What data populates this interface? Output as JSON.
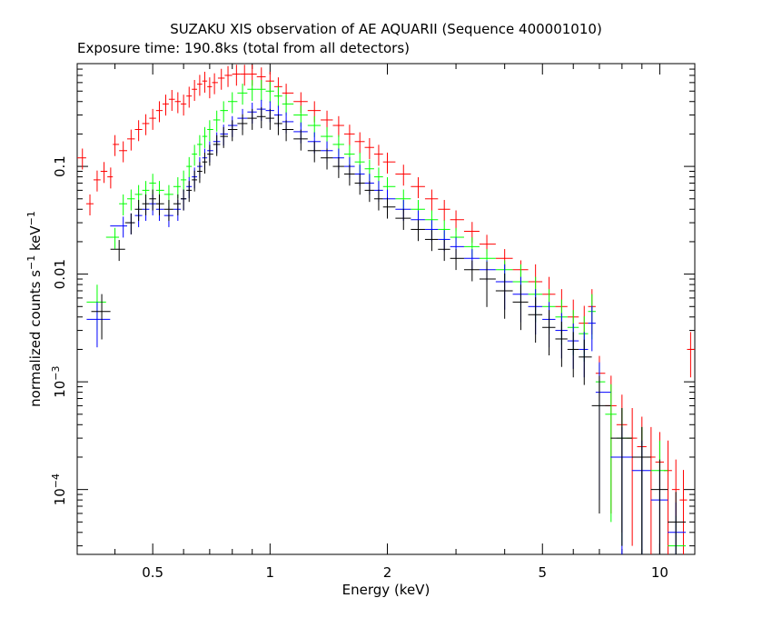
{
  "chart_data": {
    "type": "scatter",
    "title": "SUZAKU XIS observation of AE AQUARII (Sequence 400001010)",
    "subtitle": "Exposure time: 190.8ks (total from all detectors)",
    "xlabel": "Energy (keV)",
    "ylabel_main": "normalized counts s",
    "ylabel_exp1": "−1",
    "ylabel_mid": " keV",
    "ylabel_exp2": "−1",
    "x_scale": "log",
    "y_scale": "log",
    "xlim": [
      0.32,
      12.3
    ],
    "ylim": [
      2.5e-05,
      0.9
    ],
    "grid": false,
    "x_ticks": [
      {
        "value": 0.5,
        "label": "0.5"
      },
      {
        "value": 1,
        "label": "1"
      },
      {
        "value": 2,
        "label": "2"
      },
      {
        "value": 5,
        "label": "5"
      },
      {
        "value": 10,
        "label": "10"
      }
    ],
    "y_ticks": [
      {
        "value": 0.1,
        "label": "0.1",
        "exp": ""
      },
      {
        "value": 0.01,
        "label": "0.01",
        "exp": ""
      },
      {
        "value": 0.001,
        "label": "10",
        "exp": "−3"
      },
      {
        "value": 0.0001,
        "label": "10",
        "exp": "−4"
      }
    ],
    "series": [
      {
        "color": "#ff0000",
        "points": [
          [
            0.33,
            0.12
          ],
          [
            0.345,
            0.045
          ],
          [
            0.36,
            0.075
          ],
          [
            0.375,
            0.09
          ],
          [
            0.39,
            0.08
          ],
          [
            0.4,
            0.16
          ],
          [
            0.42,
            0.14
          ],
          [
            0.44,
            0.18
          ],
          [
            0.46,
            0.22
          ],
          [
            0.48,
            0.25
          ],
          [
            0.5,
            0.28
          ],
          [
            0.52,
            0.33
          ],
          [
            0.54,
            0.38
          ],
          [
            0.56,
            0.42
          ],
          [
            0.58,
            0.4
          ],
          [
            0.6,
            0.38
          ],
          [
            0.62,
            0.45
          ],
          [
            0.64,
            0.52
          ],
          [
            0.66,
            0.58
          ],
          [
            0.68,
            0.62
          ],
          [
            0.7,
            0.55
          ],
          [
            0.72,
            0.6
          ],
          [
            0.75,
            0.66
          ],
          [
            0.78,
            0.7
          ],
          [
            0.82,
            0.72
          ],
          [
            0.86,
            0.72
          ],
          [
            0.9,
            0.72
          ],
          [
            0.95,
            0.68
          ],
          [
            1.0,
            0.62
          ],
          [
            1.05,
            0.55
          ],
          [
            1.1,
            0.48
          ],
          [
            1.2,
            0.4
          ],
          [
            1.3,
            0.33
          ],
          [
            1.4,
            0.27
          ],
          [
            1.5,
            0.24
          ],
          [
            1.6,
            0.2
          ],
          [
            1.7,
            0.17
          ],
          [
            1.8,
            0.15
          ],
          [
            1.9,
            0.13
          ],
          [
            2.0,
            0.11
          ],
          [
            2.2,
            0.085
          ],
          [
            2.4,
            0.065
          ],
          [
            2.6,
            0.05
          ],
          [
            2.8,
            0.04
          ],
          [
            3.0,
            0.032
          ],
          [
            3.3,
            0.025
          ],
          [
            3.6,
            0.019
          ],
          [
            4.0,
            0.014
          ],
          [
            4.4,
            0.011
          ],
          [
            4.8,
            0.0085
          ],
          [
            5.2,
            0.0065
          ],
          [
            5.6,
            0.005
          ],
          [
            6.0,
            0.004
          ],
          [
            6.4,
            0.0035
          ],
          [
            6.7,
            0.005
          ],
          [
            7.0,
            0.0012
          ],
          [
            7.5,
            0.0006
          ],
          [
            8.0,
            0.0004
          ],
          [
            8.5,
            0.0003
          ],
          [
            9.0,
            0.00025
          ],
          [
            9.5,
            0.0002
          ],
          [
            10.0,
            0.00018
          ],
          [
            10.5,
            0.00015
          ],
          [
            11.0,
            0.0001
          ],
          [
            11.5,
            8e-05
          ],
          [
            12.0,
            0.002
          ]
        ]
      },
      {
        "color": "#00ff00",
        "points": [
          [
            0.36,
            0.0055
          ],
          [
            0.4,
            0.022
          ],
          [
            0.42,
            0.045
          ],
          [
            0.44,
            0.05
          ],
          [
            0.46,
            0.055
          ],
          [
            0.48,
            0.06
          ],
          [
            0.5,
            0.07
          ],
          [
            0.52,
            0.06
          ],
          [
            0.55,
            0.055
          ],
          [
            0.58,
            0.065
          ],
          [
            0.6,
            0.075
          ],
          [
            0.62,
            0.1
          ],
          [
            0.64,
            0.13
          ],
          [
            0.66,
            0.16
          ],
          [
            0.68,
            0.19
          ],
          [
            0.7,
            0.22
          ],
          [
            0.73,
            0.27
          ],
          [
            0.76,
            0.33
          ],
          [
            0.8,
            0.4
          ],
          [
            0.85,
            0.48
          ],
          [
            0.9,
            0.52
          ],
          [
            0.95,
            0.52
          ],
          [
            1.0,
            0.5
          ],
          [
            1.05,
            0.45
          ],
          [
            1.1,
            0.38
          ],
          [
            1.2,
            0.3
          ],
          [
            1.3,
            0.24
          ],
          [
            1.4,
            0.19
          ],
          [
            1.5,
            0.16
          ],
          [
            1.6,
            0.13
          ],
          [
            1.7,
            0.11
          ],
          [
            1.8,
            0.095
          ],
          [
            1.9,
            0.08
          ],
          [
            2.0,
            0.065
          ],
          [
            2.2,
            0.05
          ],
          [
            2.4,
            0.04
          ],
          [
            2.6,
            0.032
          ],
          [
            2.8,
            0.026
          ],
          [
            3.0,
            0.022
          ],
          [
            3.3,
            0.018
          ],
          [
            3.6,
            0.014
          ],
          [
            4.0,
            0.011
          ],
          [
            4.4,
            0.0085
          ],
          [
            4.8,
            0.0065
          ],
          [
            5.2,
            0.005
          ],
          [
            5.6,
            0.004
          ],
          [
            6.0,
            0.0032
          ],
          [
            6.4,
            0.0028
          ],
          [
            6.7,
            0.0045
          ],
          [
            7.0,
            0.001
          ],
          [
            7.5,
            0.0005
          ],
          [
            8.0,
            0.0003
          ],
          [
            9.0,
            0.0002
          ],
          [
            10.0,
            0.00015
          ],
          [
            11.0,
            3e-05
          ]
        ]
      },
      {
        "color": "#0000ff",
        "points": [
          [
            0.36,
            0.0038
          ],
          [
            0.42,
            0.028
          ],
          [
            0.44,
            0.03
          ],
          [
            0.46,
            0.035
          ],
          [
            0.48,
            0.04
          ],
          [
            0.5,
            0.045
          ],
          [
            0.52,
            0.04
          ],
          [
            0.55,
            0.035
          ],
          [
            0.58,
            0.04
          ],
          [
            0.6,
            0.05
          ],
          [
            0.62,
            0.065
          ],
          [
            0.64,
            0.08
          ],
          [
            0.66,
            0.1
          ],
          [
            0.68,
            0.12
          ],
          [
            0.7,
            0.14
          ],
          [
            0.73,
            0.17
          ],
          [
            0.76,
            0.2
          ],
          [
            0.8,
            0.24
          ],
          [
            0.85,
            0.28
          ],
          [
            0.9,
            0.32
          ],
          [
            0.95,
            0.34
          ],
          [
            1.0,
            0.33
          ],
          [
            1.05,
            0.3
          ],
          [
            1.1,
            0.26
          ],
          [
            1.2,
            0.21
          ],
          [
            1.3,
            0.17
          ],
          [
            1.4,
            0.14
          ],
          [
            1.5,
            0.12
          ],
          [
            1.6,
            0.1
          ],
          [
            1.7,
            0.085
          ],
          [
            1.8,
            0.07
          ],
          [
            1.9,
            0.06
          ],
          [
            2.0,
            0.05
          ],
          [
            2.2,
            0.04
          ],
          [
            2.4,
            0.032
          ],
          [
            2.6,
            0.026
          ],
          [
            2.8,
            0.021
          ],
          [
            3.0,
            0.018
          ],
          [
            3.3,
            0.014
          ],
          [
            3.6,
            0.011
          ],
          [
            4.0,
            0.0085
          ],
          [
            4.4,
            0.0065
          ],
          [
            4.8,
            0.005
          ],
          [
            5.2,
            0.0038
          ],
          [
            5.6,
            0.003
          ],
          [
            6.0,
            0.0024
          ],
          [
            6.4,
            0.002
          ],
          [
            6.7,
            0.0035
          ],
          [
            7.0,
            0.0008
          ],
          [
            8.0,
            0.0002
          ],
          [
            9.0,
            0.00015
          ],
          [
            10.0,
            8e-05
          ],
          [
            11.0,
            4e-05
          ]
        ]
      },
      {
        "color": "#000000",
        "points": [
          [
            0.37,
            0.0045
          ],
          [
            0.41,
            0.017
          ],
          [
            0.44,
            0.03
          ],
          [
            0.46,
            0.04
          ],
          [
            0.48,
            0.045
          ],
          [
            0.5,
            0.05
          ],
          [
            0.52,
            0.045
          ],
          [
            0.55,
            0.04
          ],
          [
            0.58,
            0.045
          ],
          [
            0.6,
            0.05
          ],
          [
            0.62,
            0.06
          ],
          [
            0.64,
            0.075
          ],
          [
            0.66,
            0.09
          ],
          [
            0.68,
            0.11
          ],
          [
            0.7,
            0.13
          ],
          [
            0.73,
            0.16
          ],
          [
            0.76,
            0.19
          ],
          [
            0.8,
            0.22
          ],
          [
            0.85,
            0.25
          ],
          [
            0.9,
            0.28
          ],
          [
            0.95,
            0.29
          ],
          [
            1.0,
            0.28
          ],
          [
            1.05,
            0.25
          ],
          [
            1.1,
            0.22
          ],
          [
            1.2,
            0.18
          ],
          [
            1.3,
            0.14
          ],
          [
            1.4,
            0.12
          ],
          [
            1.5,
            0.1
          ],
          [
            1.6,
            0.085
          ],
          [
            1.7,
            0.07
          ],
          [
            1.8,
            0.06
          ],
          [
            1.9,
            0.05
          ],
          [
            2.0,
            0.042
          ],
          [
            2.2,
            0.033
          ],
          [
            2.4,
            0.026
          ],
          [
            2.6,
            0.021
          ],
          [
            2.8,
            0.017
          ],
          [
            3.0,
            0.014
          ],
          [
            3.3,
            0.011
          ],
          [
            3.6,
            0.009
          ],
          [
            4.0,
            0.007
          ],
          [
            4.4,
            0.0055
          ],
          [
            4.8,
            0.0042
          ],
          [
            5.2,
            0.0032
          ],
          [
            5.6,
            0.0025
          ],
          [
            6.0,
            0.002
          ],
          [
            6.4,
            0.0017
          ],
          [
            7.0,
            0.0006
          ],
          [
            8.0,
            0.0003
          ],
          [
            9.0,
            0.0002
          ],
          [
            10.0,
            0.0001
          ],
          [
            11.0,
            5e-05
          ]
        ]
      }
    ]
  }
}
